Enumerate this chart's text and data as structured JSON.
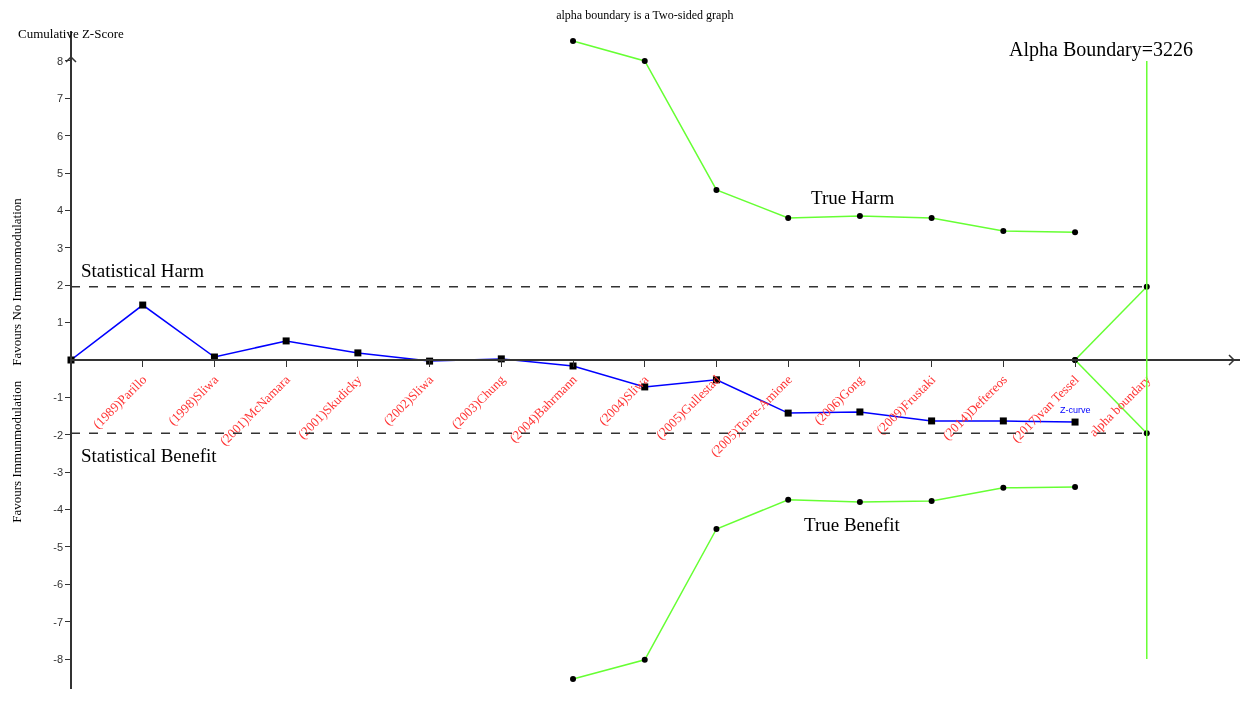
{
  "chart_data": {
    "type": "line",
    "title": "alpha boundary is a Two-sided graph",
    "ylabel": "Cumulative Z-Score",
    "categories": [
      null,
      "(1989)Parillo",
      "(1998)Sliwa",
      "(2001)McNamara",
      "(2001)Skudicky",
      "(2002)Sliwa",
      "(2003)Chung",
      "(2004)Bahrmann",
      "(2004)Sliwa",
      "(2005)Gullestad",
      "(2005)Torre-Amione",
      "(2006)Gong",
      "(2009)Frustaki",
      "(2014)Deftereos",
      "(2017)van Tessel",
      "alpha boundary"
    ],
    "ylim": [
      -8.8,
      8.8
    ],
    "yticks": [
      -8,
      -7,
      -6,
      -5,
      -4,
      -3,
      -2,
      -1,
      1,
      2,
      3,
      4,
      5,
      6,
      7,
      8
    ],
    "grid": false,
    "legend": false,
    "series": [
      {
        "name": "Z-curve",
        "color": "#0000ff",
        "marker": "square",
        "values": [
          0,
          1.47,
          0.08,
          0.51,
          0.19,
          -0.03,
          0.03,
          -0.16,
          -0.72,
          -0.53,
          -1.42,
          -1.39,
          -1.63,
          -1.63,
          -1.66,
          null
        ]
      },
      {
        "color": "#66ff33",
        "marker": "circle",
        "values": [
          null,
          null,
          null,
          null,
          null,
          null,
          null,
          8.53,
          8,
          4.55,
          3.8,
          3.85,
          3.8,
          3.45,
          3.42,
          null
        ]
      },
      {
        "color": "#66ff33",
        "marker": "circle",
        "values": [
          null,
          null,
          null,
          null,
          null,
          null,
          null,
          -8.53,
          -8.02,
          -4.52,
          -3.74,
          -3.8,
          -3.77,
          -3.42,
          -3.4,
          null
        ]
      },
      {
        "color": "#66ff33",
        "marker": "circle",
        "values": [
          null,
          null,
          null,
          null,
          null,
          null,
          null,
          null,
          null,
          null,
          null,
          null,
          null,
          null,
          0,
          1.96
        ]
      },
      {
        "color": "#66ff33",
        "marker": "circle",
        "values": [
          null,
          null,
          null,
          null,
          null,
          null,
          null,
          null,
          null,
          null,
          null,
          null,
          null,
          null,
          0,
          -1.96
        ]
      }
    ],
    "ref_lines": [
      {
        "axis": "y",
        "value": 1.96,
        "label": "Statistical Harm",
        "color": "#333333",
        "line_style": "dashed"
      },
      {
        "axis": "y",
        "value": -1.96,
        "label": "Statistical Benefit",
        "color": "#333333",
        "line_style": "dashed"
      },
      {
        "axis": "x",
        "value": "alpha boundary",
        "label": "Alpha Boundary=3226",
        "color": "#66ff33",
        "line_style": "solid"
      }
    ],
    "annotations": [
      "True Harm",
      "True Benefit",
      "Favours No Immunomodulation",
      "Favours Immunmodulation"
    ]
  }
}
